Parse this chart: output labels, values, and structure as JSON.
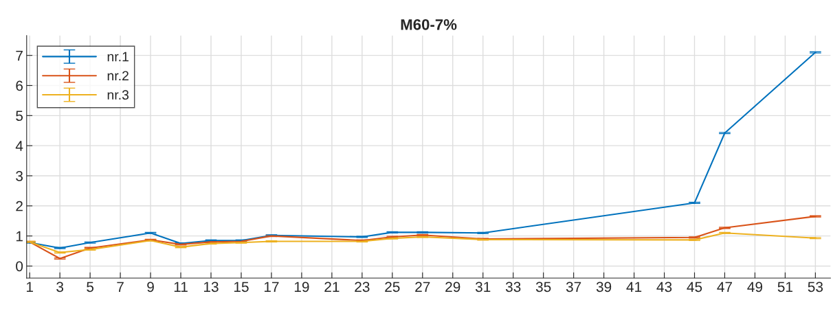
{
  "chart_data": {
    "type": "line",
    "title": "M60-7%",
    "x": [
      1,
      3,
      5,
      9,
      11,
      13,
      15,
      17,
      23,
      25,
      27,
      31,
      45,
      47,
      53
    ],
    "series": [
      {
        "name": "nr.1",
        "color": "#0072bd",
        "values": [
          0.78,
          0.6,
          0.78,
          1.1,
          0.75,
          0.85,
          0.85,
          1.02,
          0.97,
          1.12,
          1.12,
          1.1,
          2.1,
          4.42,
          7.1
        ],
        "errors": [
          0.02,
          0.02,
          0.02,
          0.02,
          0.02,
          0.02,
          0.02,
          0.02,
          0.02,
          0.02,
          0.02,
          0.02,
          0.02,
          0.02,
          0.02
        ]
      },
      {
        "name": "nr.2",
        "color": "#d95319",
        "values": [
          0.8,
          0.25,
          0.6,
          0.87,
          0.72,
          0.8,
          0.82,
          1.0,
          0.85,
          0.97,
          1.03,
          0.9,
          0.95,
          1.27,
          1.65
        ],
        "errors": [
          0.02,
          0.02,
          0.02,
          0.02,
          0.02,
          0.02,
          0.02,
          0.02,
          0.02,
          0.02,
          0.02,
          0.02,
          0.02,
          0.02,
          0.02
        ]
      },
      {
        "name": "nr.3",
        "color": "#edb120",
        "values": [
          0.8,
          0.45,
          0.55,
          0.85,
          0.63,
          0.75,
          0.78,
          0.82,
          0.82,
          0.92,
          0.97,
          0.88,
          0.87,
          1.1,
          0.93
        ],
        "errors": [
          0.02,
          0.02,
          0.02,
          0.02,
          0.02,
          0.02,
          0.02,
          0.02,
          0.02,
          0.02,
          0.02,
          0.02,
          0.02,
          0.02,
          0.02
        ]
      }
    ],
    "xlim": [
      0.8,
      54
    ],
    "ylim": [
      -0.4,
      7.66
    ],
    "xticks": [
      1,
      3,
      5,
      7,
      9,
      11,
      13,
      15,
      17,
      19,
      21,
      23,
      25,
      27,
      29,
      31,
      33,
      35,
      37,
      39,
      41,
      43,
      45,
      47,
      49,
      51,
      53
    ],
    "yticks": [
      0,
      1,
      2,
      3,
      4,
      5,
      6,
      7
    ],
    "grid": true,
    "legend": "top left"
  }
}
